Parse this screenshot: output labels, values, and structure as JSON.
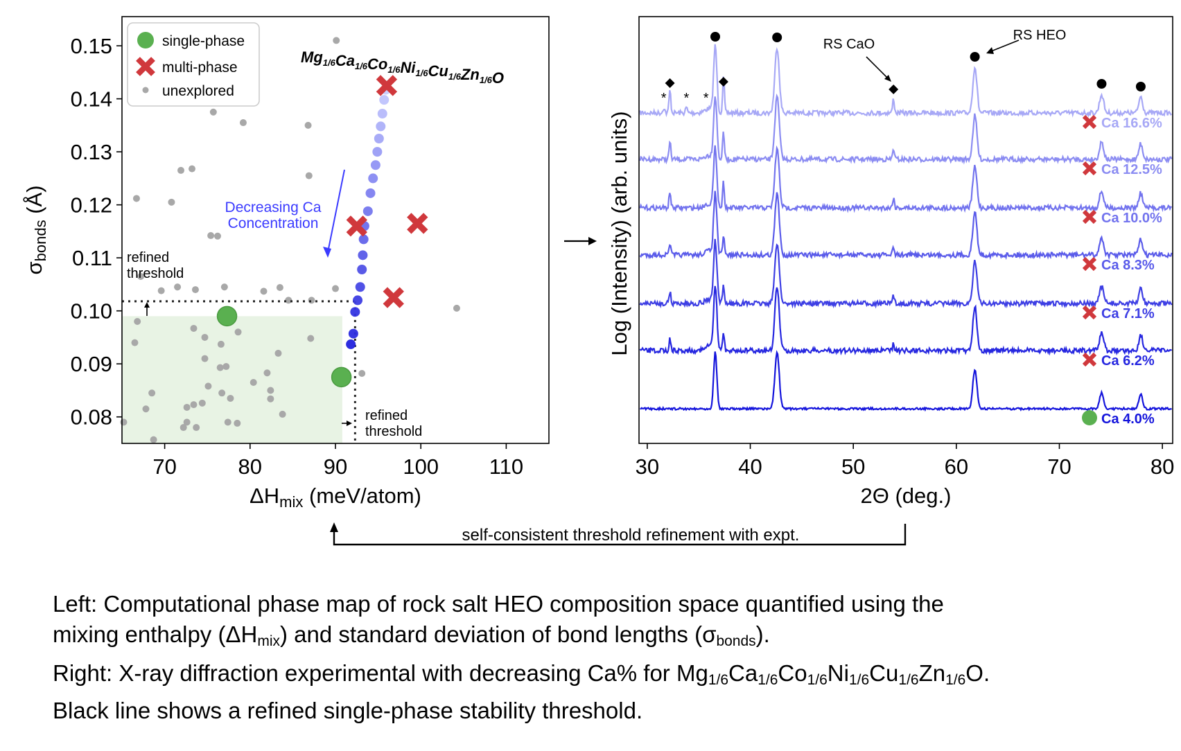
{
  "chart_data": [
    {
      "type": "scatter",
      "xlabel_main": "ΔH",
      "xlabel_sub": "mix",
      "xlabel_unit": " (meV/atom)",
      "ylabel_main": "σ",
      "ylabel_sub": "bonds",
      "ylabel_unit": " (Å)",
      "xlim": [
        65,
        115
      ],
      "ylim": [
        0.075,
        0.1555
      ],
      "xticks": [
        "70",
        "80",
        "90",
        "100",
        "110"
      ],
      "xtick_values": [
        70,
        80,
        90,
        100,
        110
      ],
      "yticks": [
        "0.08",
        "0.09",
        "0.10",
        "0.11",
        "0.12",
        "0.13",
        "0.14",
        "0.15"
      ],
      "ytick_values": [
        0.08,
        0.09,
        0.1,
        0.11,
        0.12,
        0.13,
        0.14,
        0.15
      ],
      "legend": {
        "placement": "top-left",
        "entries": [
          {
            "label": "single-phase",
            "marker": "circle",
            "color": "#5ab050"
          },
          {
            "label": "multi-phase",
            "marker": "x",
            "color": "#d0383c"
          },
          {
            "label": "unexplored",
            "marker": "small-circle",
            "color": "#a8a8a8"
          }
        ]
      },
      "formula": {
        "parts": [
          {
            "el": "Mg",
            "sub": "1/6"
          },
          {
            "el": "Ca",
            "sub": "1/6"
          },
          {
            "el": "Co",
            "sub": "1/6"
          },
          {
            "el": "Ni",
            "sub": "1/6"
          },
          {
            "el": "Cu",
            "sub": "1/6"
          },
          {
            "el": "Zn",
            "sub": "1/6"
          },
          {
            "el": "O",
            "sub": ""
          }
        ]
      },
      "arrow_label": [
        "Decreasing Ca",
        "Concentration"
      ],
      "threshold_label": [
        "refined",
        "threshold"
      ],
      "thresholds": {
        "sigma": 0.1018,
        "dH": 92.3
      },
      "single_phase_region": {
        "x": [
          65,
          90.8
        ],
        "y": [
          0.075,
          0.099
        ]
      },
      "series": [
        {
          "name": "single-phase",
          "color": "#5ab050",
          "points": [
            [
              77.3,
              0.099
            ],
            [
              90.7,
              0.0875
            ]
          ]
        },
        {
          "name": "multi-phase",
          "color": "#d0383c",
          "points": [
            [
              96.0,
              0.1425
            ],
            [
              92.5,
              0.116
            ],
            [
              99.6,
              0.1165
            ],
            [
              96.8,
              0.1025
            ]
          ]
        },
        {
          "name": "unexplored",
          "color": "#a8a8a8",
          "points": [
            [
              90.1,
              0.151
            ],
            [
              75.7,
              0.1375
            ],
            [
              79.2,
              0.1355
            ],
            [
              86.8,
              0.135
            ],
            [
              71.9,
              0.1265
            ],
            [
              73.2,
              0.1268
            ],
            [
              86.9,
              0.1255
            ],
            [
              66.7,
              0.1212
            ],
            [
              70.8,
              0.1205
            ],
            [
              75.4,
              0.1142
            ],
            [
              76.2,
              0.1141
            ],
            [
              67.2,
              0.1065
            ],
            [
              69.6,
              0.1038
            ],
            [
              71.5,
              0.1045
            ],
            [
              73.6,
              0.104
            ],
            [
              77.0,
              0.1045
            ],
            [
              81.6,
              0.1037
            ],
            [
              83.5,
              0.1044
            ],
            [
              90.0,
              0.1042
            ],
            [
              87.2,
              0.102
            ],
            [
              84.5,
              0.102
            ],
            [
              104.2,
              0.1005
            ],
            [
              66.8,
              0.098
            ],
            [
              73.4,
              0.0967
            ],
            [
              78.6,
              0.096
            ],
            [
              74.7,
              0.095
            ],
            [
              66.5,
              0.094
            ],
            [
              76.6,
              0.0937
            ],
            [
              87.1,
              0.0948
            ],
            [
              83.3,
              0.092
            ],
            [
              74.7,
              0.091
            ],
            [
              76.5,
              0.0893
            ],
            [
              77.2,
              0.0895
            ],
            [
              82.0,
              0.0883
            ],
            [
              80.4,
              0.0865
            ],
            [
              75.1,
              0.0858
            ],
            [
              76.7,
              0.0845
            ],
            [
              77.7,
              0.0835
            ],
            [
              82.4,
              0.085
            ],
            [
              82.4,
              0.0834
            ],
            [
              68.5,
              0.0845
            ],
            [
              74.4,
              0.0826
            ],
            [
              73.4,
              0.0823
            ],
            [
              67.8,
              0.0815
            ],
            [
              72.6,
              0.0818
            ],
            [
              77.4,
              0.079
            ],
            [
              78.5,
              0.0788
            ],
            [
              72.6,
              0.079
            ],
            [
              83.8,
              0.0805
            ],
            [
              65.2,
              0.079
            ],
            [
              72.2,
              0.078
            ],
            [
              73.7,
              0.078
            ],
            [
              68.7,
              0.0757
            ],
            [
              93.1,
              0.0882
            ]
          ]
        },
        {
          "name": "Ca trajectory",
          "colors": [
            "#2222dd",
            "#c8ccff"
          ],
          "points": [
            [
              91.8,
              0.0937
            ],
            [
              92.1,
              0.0957
            ],
            [
              92.3,
              0.0998
            ],
            [
              92.6,
              0.102
            ],
            [
              92.9,
              0.1045
            ],
            [
              93.1,
              0.1078
            ],
            [
              93.2,
              0.1105
            ],
            [
              93.3,
              0.1135
            ],
            [
              93.4,
              0.116
            ],
            [
              93.8,
              0.1188
            ],
            [
              94.1,
              0.1222
            ],
            [
              94.4,
              0.125
            ],
            [
              94.7,
              0.1275
            ],
            [
              94.9,
              0.13
            ],
            [
              95.1,
              0.1325
            ],
            [
              95.3,
              0.1348
            ],
            [
              95.5,
              0.1372
            ],
            [
              95.7,
              0.1398
            ],
            [
              95.9,
              0.1417
            ]
          ]
        }
      ]
    },
    {
      "type": "line",
      "xlabel": "2Θ (deg.)",
      "ylabel": "Log (Intensity) (arb. units)",
      "xlim": [
        29.2,
        81
      ],
      "xticks": [
        "30",
        "40",
        "50",
        "60",
        "70",
        "80"
      ],
      "xtick_values": [
        30,
        40,
        50,
        60,
        70,
        80
      ],
      "peaks_heo": [
        36.6,
        42.6,
        61.8,
        74.1,
        77.9
      ],
      "peaks_cao": [
        32.2,
        37.4,
        53.9
      ],
      "star_peaks": [
        31.6,
        33.8,
        35.7
      ],
      "annotations": [
        {
          "text": "RS CaO",
          "at": 53.9
        },
        {
          "text": "RS HEO",
          "at": 61.8
        }
      ],
      "series": [
        {
          "name": "Ca 16.6%",
          "phase": "multi",
          "color": "#a7a8f6"
        },
        {
          "name": "Ca 12.5%",
          "phase": "multi",
          "color": "#8b8cf2"
        },
        {
          "name": "Ca 10.0%",
          "phase": "multi",
          "color": "#7273ee"
        },
        {
          "name": "Ca 8.3%",
          "phase": "multi",
          "color": "#5a5bea"
        },
        {
          "name": "Ca 7.1%",
          "phase": "multi",
          "color": "#3d3ee4"
        },
        {
          "name": "Ca 6.2%",
          "phase": "multi",
          "color": "#2627e0"
        },
        {
          "name": "Ca 4.0%",
          "phase": "single",
          "color": "#1414dc"
        }
      ]
    }
  ],
  "bottom_bracket_label": "self-consistent threshold refinement with expt.",
  "caption": {
    "line1": "Left: Computational phase map of rock salt HEO composition space quantified using the",
    "line2_a": "mixing enthalpy (ΔH",
    "line2_sub1": "mix",
    "line2_b": ") and standard deviation of bond lengths (σ",
    "line2_sub2": "bonds",
    "line2_c": ").",
    "line3_a": "Right: X-ray diffraction experimental with decreasing Ca% for Mg",
    "line3_parts": [
      {
        "sub": "1/6",
        "next": "Ca"
      },
      {
        "sub": "1/6",
        "next": "Co"
      },
      {
        "sub": "1/6",
        "next": "Ni"
      },
      {
        "sub": "1/6",
        "next": "Cu"
      },
      {
        "sub": "1/6",
        "next": "Zn"
      },
      {
        "sub": "1/6",
        "next": "O."
      }
    ],
    "line4": "Black line shows a refined single-phase stability threshold."
  },
  "colors": {
    "single": "#5ab050",
    "multi": "#d0383c",
    "unexplored": "#a8a8a8",
    "region": "#e8f3e4"
  }
}
